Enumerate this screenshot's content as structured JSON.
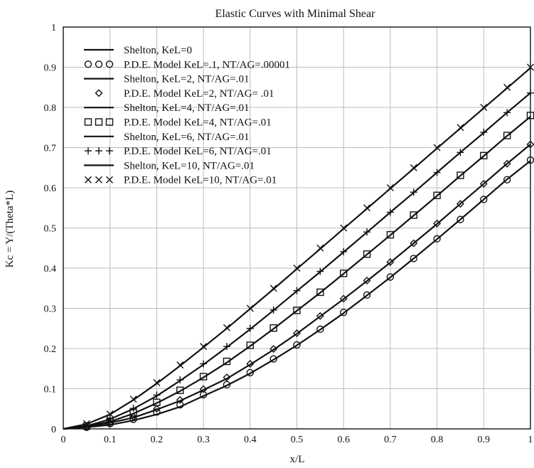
{
  "chart_data": {
    "type": "line",
    "title": "Elastic Curves with Minimal Shear",
    "xlabel": "x/L",
    "ylabel": "Kc = Y/(Theta*L)",
    "xlim": [
      0,
      1
    ],
    "ylim": [
      0,
      1
    ],
    "xticks": [
      "0",
      "0.1",
      "0.2",
      "0.3",
      "0.4",
      "0.5",
      "0.6",
      "0.7",
      "0.8",
      "0.9",
      "1"
    ],
    "yticks": [
      "0",
      "0.1",
      "0.2",
      "0.3",
      "0.4",
      "0.5",
      "0.6",
      "0.7",
      "0.8",
      "0.9",
      "1"
    ],
    "grid": true,
    "legend_position": "top-left",
    "series": [
      {
        "name": "Shelton, KeL=0",
        "kind": "line",
        "marker": "none",
        "marker_glyph": "",
        "x": [
          0,
          0.05,
          0.1,
          0.15,
          0.2,
          0.25,
          0.3,
          0.35,
          0.4,
          0.45,
          0.5,
          0.55,
          0.6,
          0.65,
          0.7,
          0.75,
          0.8,
          0.85,
          0.9,
          0.95,
          1
        ],
        "y": [
          0,
          0.004,
          0.01,
          0.021,
          0.036,
          0.055,
          0.082,
          0.108,
          0.138,
          0.172,
          0.208,
          0.247,
          0.288,
          0.332,
          0.377,
          0.424,
          0.472,
          0.521,
          0.571,
          0.621,
          0.667
        ]
      },
      {
        "name": "P.D.E. Model KeL=.1, NT/AG=.00001",
        "kind": "markers",
        "marker": "circle",
        "marker_glyph": "OOO",
        "x": [
          0,
          0.05,
          0.1,
          0.15,
          0.2,
          0.25,
          0.3,
          0.35,
          0.4,
          0.45,
          0.5,
          0.55,
          0.6,
          0.65,
          0.7,
          0.75,
          0.8,
          0.85,
          0.9,
          0.95,
          1
        ],
        "y": [
          0,
          0.004,
          0.013,
          0.024,
          0.042,
          0.06,
          0.085,
          0.11,
          0.14,
          0.174,
          0.209,
          0.248,
          0.29,
          0.333,
          0.378,
          0.424,
          0.473,
          0.521,
          0.571,
          0.62,
          0.669
        ]
      },
      {
        "name": "Shelton, KeL=2, NT/AG=.01",
        "kind": "line",
        "marker": "none",
        "marker_glyph": "",
        "x": [
          0,
          0.05,
          0.1,
          0.15,
          0.2,
          0.25,
          0.3,
          0.35,
          0.4,
          0.45,
          0.5,
          0.55,
          0.6,
          0.65,
          0.7,
          0.75,
          0.8,
          0.85,
          0.9,
          0.95,
          1
        ],
        "y": [
          0,
          0.005,
          0.015,
          0.028,
          0.048,
          0.07,
          0.097,
          0.125,
          0.16,
          0.197,
          0.237,
          0.28,
          0.323,
          0.368,
          0.414,
          0.462,
          0.51,
          0.56,
          0.61,
          0.66,
          0.708
        ]
      },
      {
        "name": "P.D.E. Model KeL=2, NT/AG= .01",
        "kind": "markers",
        "marker": "diamond",
        "marker_glyph": "◇",
        "x": [
          0,
          0.05,
          0.1,
          0.15,
          0.2,
          0.25,
          0.3,
          0.35,
          0.4,
          0.45,
          0.5,
          0.55,
          0.6,
          0.65,
          0.7,
          0.75,
          0.8,
          0.85,
          0.9,
          0.95,
          1
        ],
        "y": [
          0,
          0.005,
          0.015,
          0.03,
          0.05,
          0.072,
          0.099,
          0.128,
          0.162,
          0.199,
          0.238,
          0.281,
          0.324,
          0.369,
          0.415,
          0.462,
          0.511,
          0.56,
          0.61,
          0.66,
          0.708
        ]
      },
      {
        "name": "Shelton, KeL=4, NT/AG=.01",
        "kind": "line",
        "marker": "none",
        "marker_glyph": "",
        "x": [
          0,
          0.05,
          0.1,
          0.15,
          0.2,
          0.25,
          0.3,
          0.35,
          0.4,
          0.45,
          0.5,
          0.55,
          0.6,
          0.65,
          0.7,
          0.75,
          0.8,
          0.85,
          0.9,
          0.95,
          1
        ],
        "y": [
          0,
          0.006,
          0.018,
          0.038,
          0.064,
          0.094,
          0.128,
          0.165,
          0.206,
          0.249,
          0.294,
          0.339,
          0.386,
          0.434,
          0.482,
          0.531,
          0.58,
          0.63,
          0.679,
          0.729,
          0.777
        ]
      },
      {
        "name": "P.D.E. Model KeL=4, NT/AG=.01",
        "kind": "markers",
        "marker": "square",
        "marker_glyph": "□□□",
        "x": [
          0,
          0.05,
          0.1,
          0.15,
          0.2,
          0.25,
          0.3,
          0.35,
          0.4,
          0.45,
          0.5,
          0.55,
          0.6,
          0.65,
          0.7,
          0.75,
          0.8,
          0.85,
          0.9,
          0.95,
          1
        ],
        "y": [
          0,
          0.007,
          0.019,
          0.04,
          0.066,
          0.096,
          0.13,
          0.168,
          0.208,
          0.251,
          0.295,
          0.34,
          0.387,
          0.435,
          0.483,
          0.532,
          0.581,
          0.631,
          0.68,
          0.73,
          0.78
        ]
      },
      {
        "name": "Shelton, KeL=6, NT/AG=.01",
        "kind": "line",
        "marker": "none",
        "marker_glyph": "",
        "x": [
          0,
          0.05,
          0.1,
          0.15,
          0.2,
          0.25,
          0.3,
          0.35,
          0.4,
          0.45,
          0.5,
          0.55,
          0.6,
          0.65,
          0.7,
          0.75,
          0.8,
          0.85,
          0.9,
          0.95,
          1
        ],
        "y": [
          0,
          0.007,
          0.024,
          0.05,
          0.082,
          0.12,
          0.16,
          0.203,
          0.248,
          0.295,
          0.343,
          0.391,
          0.44,
          0.489,
          0.539,
          0.588,
          0.638,
          0.688,
          0.737,
          0.787,
          0.836
        ]
      },
      {
        "name": "P.D.E. Model KeL=6, NT/AG=.01",
        "kind": "markers",
        "marker": "plus",
        "marker_glyph": "+++",
        "x": [
          0,
          0.05,
          0.1,
          0.15,
          0.2,
          0.25,
          0.3,
          0.35,
          0.4,
          0.45,
          0.5,
          0.55,
          0.6,
          0.65,
          0.7,
          0.75,
          0.8,
          0.85,
          0.9,
          0.95,
          1
        ],
        "y": [
          0,
          0.008,
          0.025,
          0.051,
          0.084,
          0.122,
          0.162,
          0.205,
          0.25,
          0.296,
          0.344,
          0.392,
          0.441,
          0.49,
          0.539,
          0.589,
          0.638,
          0.688,
          0.738,
          0.787,
          0.836
        ]
      },
      {
        "name": "Shelton, KeL=10, NT/AG=.01",
        "kind": "line",
        "marker": "none",
        "marker_glyph": "",
        "x": [
          0,
          0.05,
          0.1,
          0.15,
          0.2,
          0.25,
          0.3,
          0.35,
          0.4,
          0.45,
          0.5,
          0.55,
          0.6,
          0.65,
          0.7,
          0.75,
          0.8,
          0.85,
          0.9,
          0.95,
          1
        ],
        "y": [
          0,
          0.012,
          0.036,
          0.072,
          0.113,
          0.157,
          0.203,
          0.25,
          0.299,
          0.348,
          0.398,
          0.448,
          0.498,
          0.548,
          0.598,
          0.648,
          0.698,
          0.748,
          0.798,
          0.848,
          0.898
        ]
      },
      {
        "name": "P.D.E. Model KeL=10, NT/AG=.01",
        "kind": "markers",
        "marker": "cross",
        "marker_glyph": "×××",
        "x": [
          0,
          0.05,
          0.1,
          0.15,
          0.2,
          0.25,
          0.3,
          0.35,
          0.4,
          0.45,
          0.5,
          0.55,
          0.6,
          0.65,
          0.7,
          0.75,
          0.8,
          0.85,
          0.9,
          0.95,
          1
        ],
        "y": [
          0,
          0.013,
          0.037,
          0.074,
          0.115,
          0.159,
          0.205,
          0.252,
          0.3,
          0.35,
          0.4,
          0.45,
          0.5,
          0.55,
          0.6,
          0.65,
          0.7,
          0.75,
          0.8,
          0.85,
          0.9
        ]
      }
    ]
  }
}
